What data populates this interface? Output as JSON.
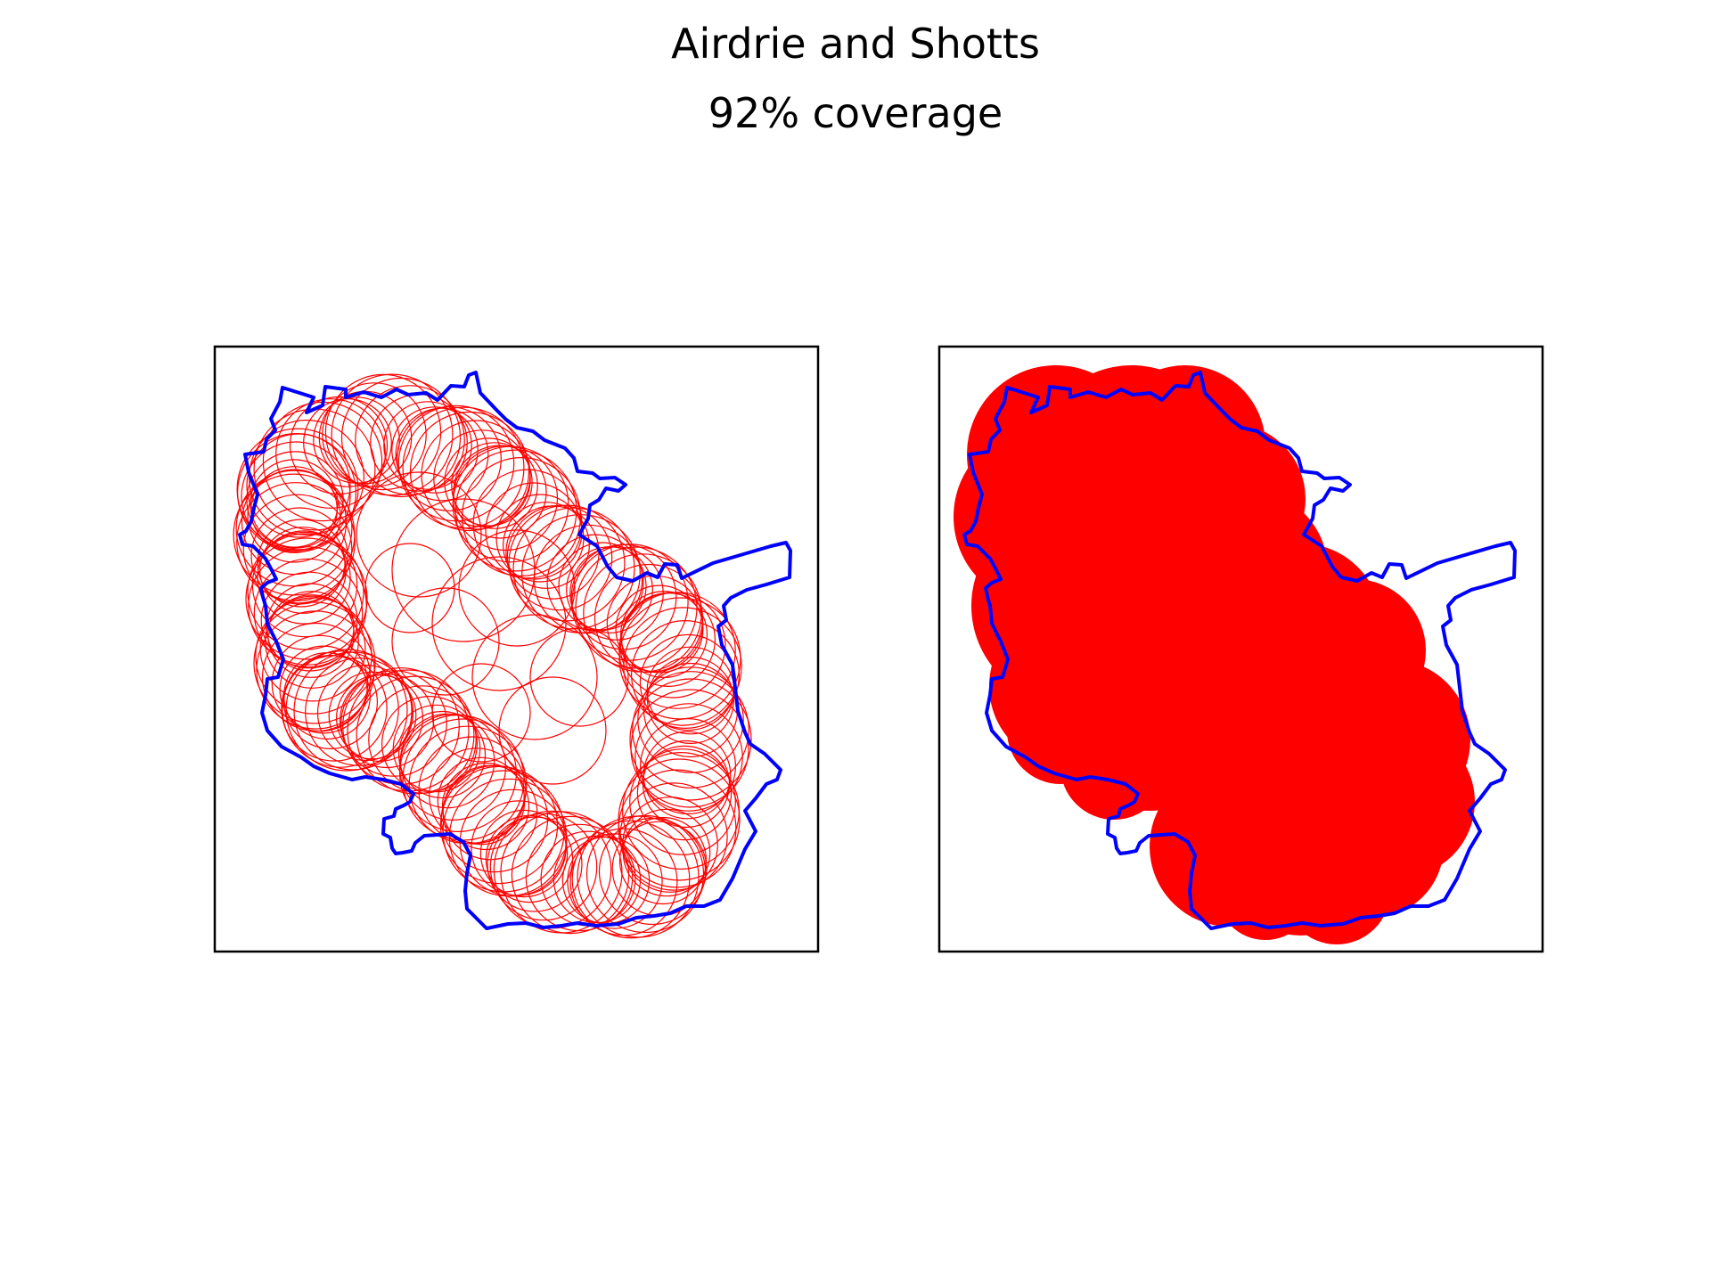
{
  "figure": {
    "title": "Airdrie and Shotts",
    "subtitle": "92% coverage"
  },
  "colors": {
    "boundary": "#0000ff",
    "coverage": "#ff0000",
    "frame": "#000000",
    "background": "#ffffff"
  },
  "panels": [
    {
      "id": "left",
      "content": "boundary outline with individual coverage circles"
    },
    {
      "id": "right",
      "content": "boundary outline with filled coverage union"
    }
  ]
}
